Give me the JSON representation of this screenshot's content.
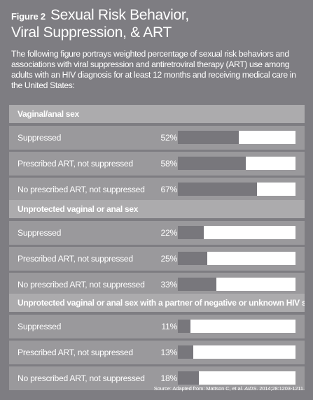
{
  "header": {
    "figure_label": "Figure 2",
    "title_line1": "Sexual Risk Behavior,",
    "title_line2": "Viral Suppression, & ART"
  },
  "intro": "The following figure portrays weighted percentage of sexual risk behaviors and associations with viral suppression and antiretroviral therapy (ART) use among adults with an HIV diagnosis for at least 12 months and receiving medical care in the United States:",
  "chart_data": {
    "type": "bar",
    "orientation": "horizontal",
    "categories": [
      "Suppressed",
      "Prescribed ART, not suppressed",
      "No prescribed ART, not suppressed"
    ],
    "xlim": [
      0,
      100
    ],
    "unit": "%",
    "series": [
      {
        "name": "Vaginal/anal sex",
        "values": [
          52,
          58,
          67
        ]
      },
      {
        "name": "Unprotected vaginal or anal sex",
        "values": [
          22,
          25,
          33
        ]
      },
      {
        "name": "Unprotected vaginal or anal sex with a partner of negative or unknown HIV status",
        "values": [
          11,
          13,
          18
        ]
      }
    ]
  },
  "source": {
    "prefix": "Source: Adapted from: Mattson C, et al. ",
    "journal": "AIDS",
    "suffix": ". 2014;28:1203-1211."
  },
  "colors": {
    "background": "#7e7d82",
    "header_band": "#acabad",
    "row_band": "#9a999c",
    "bar_track": "#ffffff",
    "bar_fill": "#78777c"
  }
}
